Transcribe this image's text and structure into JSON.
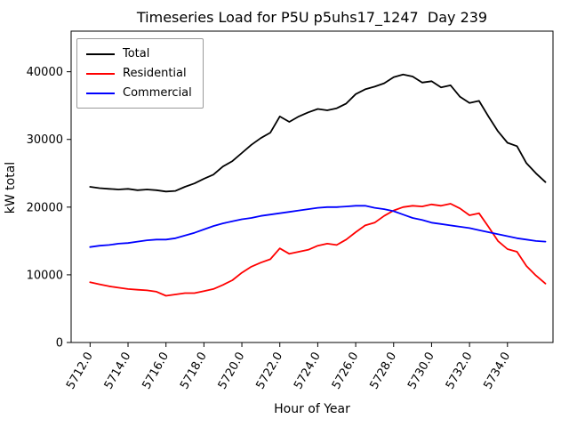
{
  "chart_data": {
    "type": "line",
    "title": "Timeseries Load for P5U p5uhs17_1247  Day 239",
    "xlabel": "Hour of Year",
    "ylabel": "kW total",
    "grid": false,
    "legend_position": "upper left",
    "xlim": [
      5711.0,
      5736.4
    ],
    "ylim": [
      0,
      46000
    ],
    "xticks": [
      5712,
      5714,
      5716,
      5718,
      5720,
      5722,
      5724,
      5726,
      5728,
      5730,
      5732,
      5734
    ],
    "xtick_labels": [
      "5712.0",
      "5714.0",
      "5716.0",
      "5718.0",
      "5720.0",
      "5722.0",
      "5724.0",
      "5726.0",
      "5728.0",
      "5730.0",
      "5732.0",
      "5734.0"
    ],
    "yticks": [
      0,
      10000,
      20000,
      30000,
      40000
    ],
    "ytick_labels": [
      "0",
      "10000",
      "20000",
      "30000",
      "40000"
    ],
    "x": [
      5712.0,
      5712.5,
      5713.0,
      5713.5,
      5714.0,
      5714.5,
      5715.0,
      5715.5,
      5716.0,
      5716.5,
      5717.0,
      5717.5,
      5718.0,
      5718.5,
      5719.0,
      5719.5,
      5720.0,
      5720.5,
      5721.0,
      5721.5,
      5722.0,
      5722.5,
      5723.0,
      5723.5,
      5724.0,
      5724.5,
      5725.0,
      5725.5,
      5726.0,
      5726.5,
      5727.0,
      5727.5,
      5728.0,
      5728.5,
      5729.0,
      5729.5,
      5730.0,
      5730.5,
      5731.0,
      5731.5,
      5732.0,
      5732.5,
      5733.0,
      5733.5,
      5734.0,
      5734.5,
      5735.0,
      5735.5,
      5736.0
    ],
    "series": [
      {
        "name": "Total",
        "color": "#000000",
        "values": [
          23000,
          22800,
          22700,
          22600,
          22700,
          22500,
          22600,
          22500,
          22300,
          22400,
          23000,
          23500,
          24200,
          24800,
          26000,
          26800,
          28000,
          29200,
          30200,
          31000,
          33400,
          32600,
          33400,
          34000,
          34500,
          34300,
          34600,
          35300,
          36700,
          37400,
          37800,
          38300,
          39200,
          39600,
          39300,
          38400,
          38600,
          37700,
          38000,
          36300,
          35400,
          35700,
          33400,
          31200,
          29500,
          29000,
          26500,
          25000,
          23700
        ]
      },
      {
        "name": "Residential",
        "color": "#ff0000",
        "values": [
          8900,
          8600,
          8300,
          8100,
          7900,
          7800,
          7700,
          7500,
          6900,
          7100,
          7300,
          7300,
          7600,
          7900,
          8500,
          9200,
          10300,
          11200,
          11800,
          12300,
          13900,
          13100,
          13400,
          13700,
          14300,
          14600,
          14400,
          15200,
          16300,
          17300,
          17700,
          18700,
          19500,
          20000,
          20200,
          20100,
          20400,
          20200,
          20500,
          19800,
          18800,
          19100,
          17100,
          15000,
          13800,
          13400,
          11300,
          9900,
          8700
        ]
      },
      {
        "name": "Commercial",
        "color": "#0000ff",
        "values": [
          14100,
          14300,
          14400,
          14600,
          14700,
          14900,
          15100,
          15200,
          15200,
          15400,
          15800,
          16200,
          16700,
          17200,
          17600,
          17900,
          18200,
          18400,
          18700,
          18900,
          19100,
          19300,
          19500,
          19700,
          19900,
          20000,
          20000,
          20100,
          20200,
          20200,
          19900,
          19700,
          19400,
          18900,
          18400,
          18100,
          17700,
          17500,
          17300,
          17100,
          16900,
          16600,
          16300,
          16000,
          15700,
          15400,
          15200,
          15000,
          14900
        ]
      }
    ]
  }
}
